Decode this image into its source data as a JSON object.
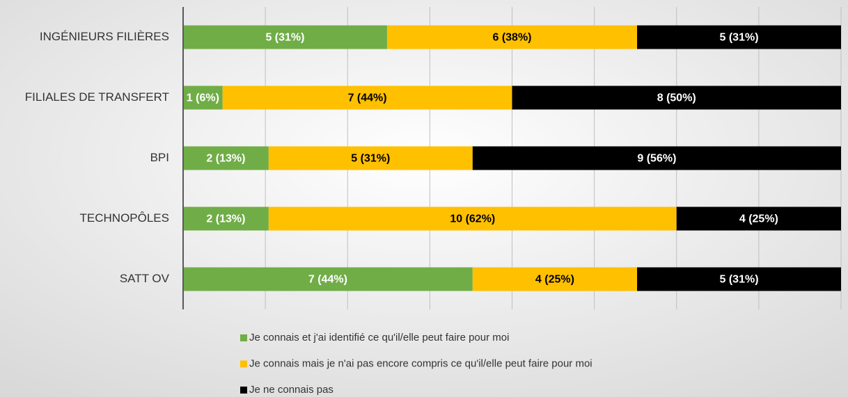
{
  "chart_data": {
    "type": "stacked_bar_horizontal",
    "categories": [
      "INGÉNIEURS FILIÈRES",
      "FILIALES DE TRANSFERT",
      "BPI",
      "TECHNOPÔLES",
      "SATT OV"
    ],
    "series": [
      {
        "name": "Je connais et j'ai identifié ce qu'il/elle peut faire pour moi",
        "color": "#70ad47",
        "values": [
          31,
          6,
          13,
          13,
          44
        ],
        "value_labels": [
          "5 (31%)",
          "1 (6%)",
          "2 (13%)",
          "2 (13%)",
          "7 (44%)"
        ]
      },
      {
        "name": "Je connais mais je n'ai pas encore compris ce qu'il/elle peut faire pour moi",
        "color": "#ffc000",
        "values": [
          38,
          44,
          31,
          62,
          25
        ],
        "value_labels": [
          "6 (38%)",
          "7 (44%)",
          "5 (31%)",
          "10 (62%)",
          "4 (25%)"
        ]
      },
      {
        "name": "Je ne connais pas",
        "color": "#000000",
        "values": [
          31,
          50,
          56,
          25,
          31
        ],
        "value_labels": [
          "5 (31%)",
          "8 (50%)",
          "9 (56%)",
          "4 (25%)",
          "5 (31%)"
        ]
      }
    ],
    "xlim": [
      0,
      100
    ],
    "xticks": [
      0,
      12.5,
      25,
      37.5,
      50,
      62.5,
      75,
      87.5,
      100
    ],
    "grid": true
  }
}
